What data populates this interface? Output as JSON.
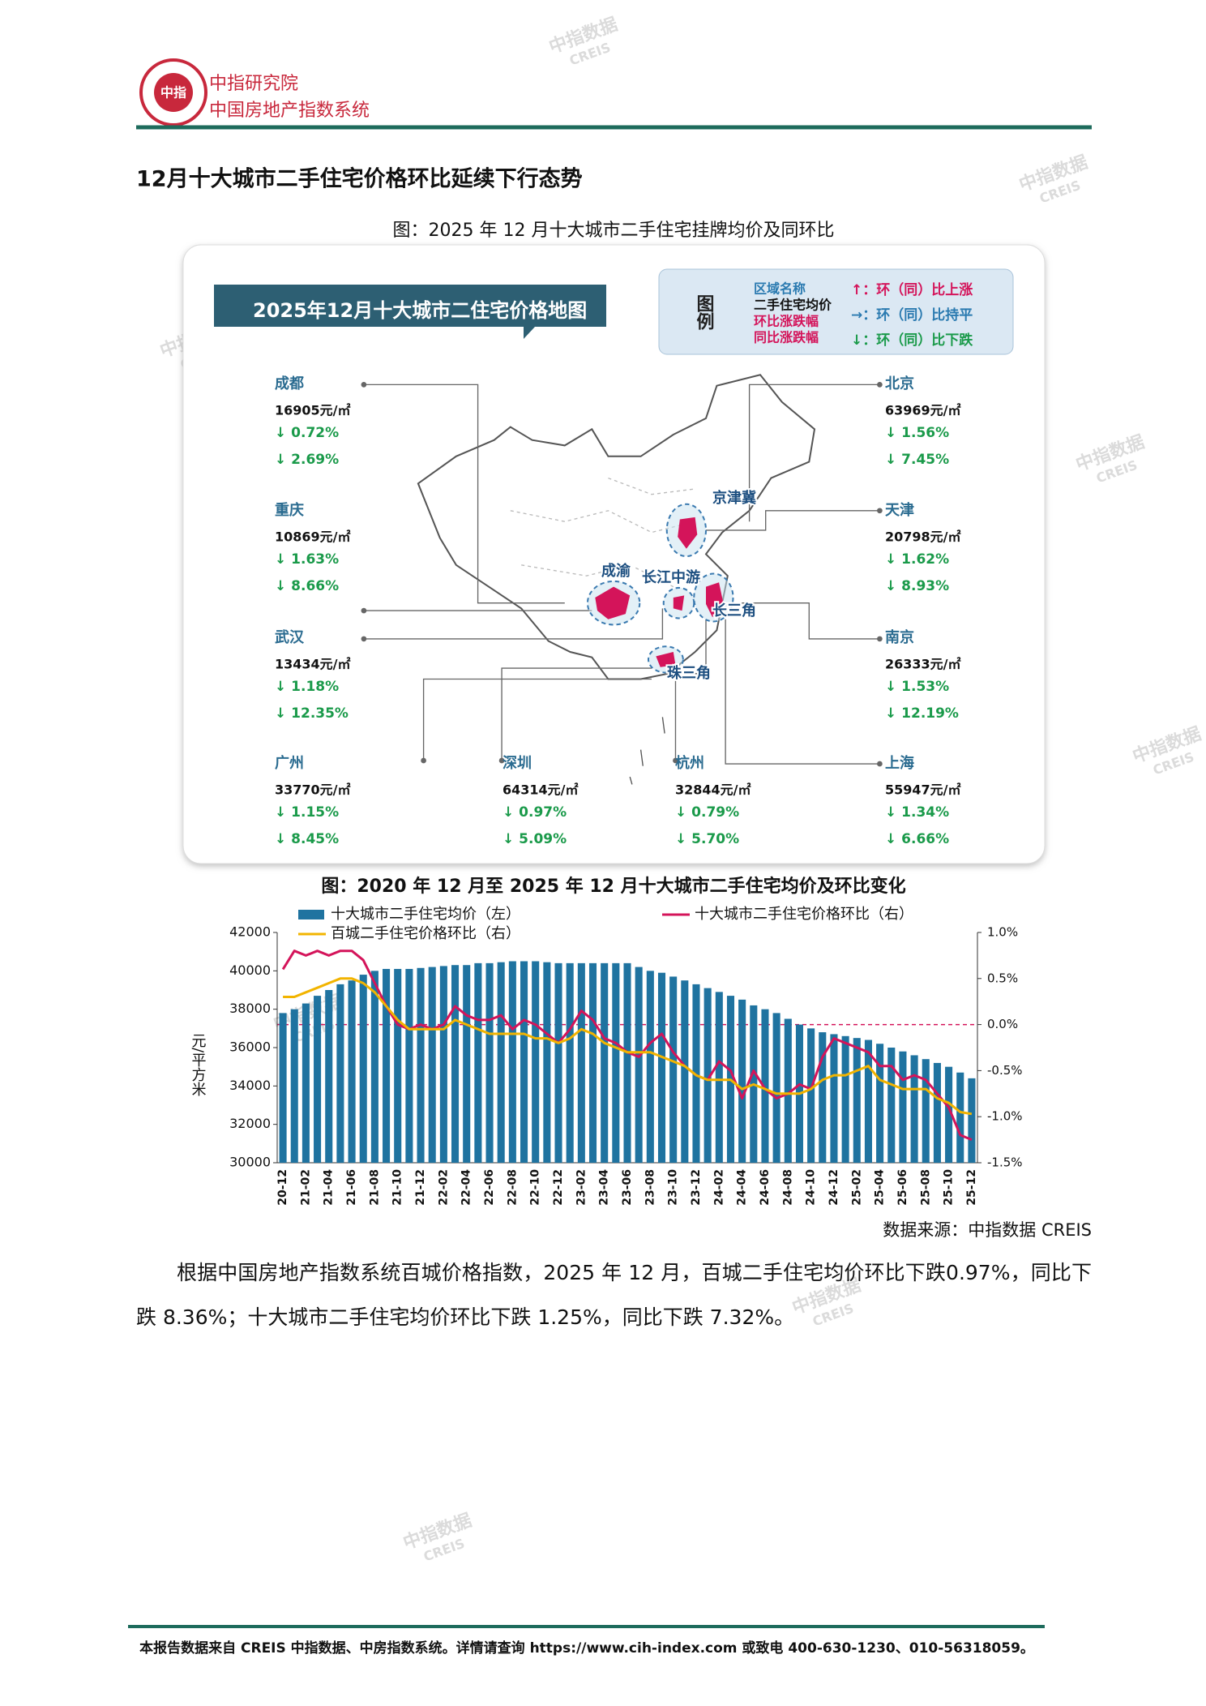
{
  "header": {
    "logo_text": "中指",
    "org": "中指研究院",
    "system": "中国房地产指数系统"
  },
  "section_title": "12月十大城市二手住宅价格环比延续下行态势",
  "figure1": {
    "caption": "图：2025 年 12 月十大城市二手住宅挂牌均价及同环比",
    "map_title": "2025年12月十大城市二住宅价格地图",
    "legend": {
      "title": "图例",
      "items": [
        "区域名称",
        "二手住宅均价",
        "环比涨跌幅",
        "同比涨跌幅"
      ],
      "arrows": [
        "↑：环（同）比上涨",
        "→：环（同）比持平",
        "↓：环（同）比下跌"
      ]
    },
    "regions": [
      "京津冀",
      "成渝",
      "长江中游",
      "长三角",
      "珠三角"
    ],
    "cities": [
      {
        "name": "成都",
        "price": "16905元/㎡",
        "mom": "↓ 0.72%",
        "yoy": "↓ 2.69%"
      },
      {
        "name": "重庆",
        "price": "10869元/㎡",
        "mom": "↓ 1.63%",
        "yoy": "↓ 8.66%"
      },
      {
        "name": "武汉",
        "price": "13434元/㎡",
        "mom": "↓ 1.18%",
        "yoy": "↓ 12.35%"
      },
      {
        "name": "广州",
        "price": "33770元/㎡",
        "mom": "↓ 1.15%",
        "yoy": "↓ 8.45%"
      },
      {
        "name": "深圳",
        "price": "64314元/㎡",
        "mom": "↓ 0.97%",
        "yoy": "↓ 5.09%"
      },
      {
        "name": "杭州",
        "price": "32844元/㎡",
        "mom": "↓ 0.79%",
        "yoy": "↓ 5.70%"
      },
      {
        "name": "北京",
        "price": "63969元/㎡",
        "mom": "↓ 1.56%",
        "yoy": "↓ 7.45%"
      },
      {
        "name": "天津",
        "price": "20798元/㎡",
        "mom": "↓ 1.62%",
        "yoy": "↓ 8.93%"
      },
      {
        "name": "南京",
        "price": "26333元/㎡",
        "mom": "↓ 1.53%",
        "yoy": "↓ 12.19%"
      },
      {
        "name": "上海",
        "price": "55947元/㎡",
        "mom": "↓ 1.34%",
        "yoy": "↓ 6.66%"
      }
    ]
  },
  "chart_data": {
    "type": "bar-line",
    "title": "图：2020 年 12 月至 2025 年 12 月十大城市二手住宅均价及环比变化",
    "y_label": "元/平方米",
    "categories": [
      "20-12",
      null,
      "21-02",
      null,
      "21-04",
      null,
      "21-06",
      null,
      "21-08",
      null,
      "21-10",
      null,
      "21-12",
      null,
      "22-02",
      null,
      "22-04",
      null,
      "22-06",
      null,
      "22-08",
      null,
      "22-10",
      null,
      "22-12",
      null,
      "23-02",
      null,
      "23-04",
      null,
      "23-06",
      null,
      "23-08",
      null,
      "23-10",
      null,
      "23-12",
      null,
      "24-02",
      null,
      "24-04",
      null,
      "24-06",
      null,
      "24-08",
      null,
      "24-10",
      null,
      "24-12",
      null,
      "25-02",
      null,
      "25-04",
      null,
      "25-06",
      null,
      "25-08",
      null,
      "25-10",
      null,
      "25-12"
    ],
    "series": [
      {
        "name": "十大城市二手住宅均价（左）",
        "type": "bar",
        "color": "#1f73a0",
        "values": [
          37800,
          38000,
          38300,
          38700,
          39000,
          39300,
          39500,
          39800,
          40000,
          40100,
          40100,
          40100,
          40150,
          40200,
          40250,
          40300,
          40300,
          40400,
          40400,
          40450,
          40500,
          40500,
          40500,
          40450,
          40400,
          40400,
          40400,
          40400,
          40400,
          40400,
          40400,
          40200,
          40000,
          39900,
          39700,
          39500,
          39300,
          39100,
          38900,
          38700,
          38500,
          38200,
          38000,
          37800,
          37500,
          37200,
          37000,
          36800,
          36700,
          36600,
          36500,
          36400,
          36200,
          36000,
          35800,
          35600,
          35400,
          35200,
          35000,
          34700,
          34400
        ]
      },
      {
        "name": "十大城市二手住宅价格环比（右）",
        "type": "line",
        "axis": "y2",
        "color": "#d4145a",
        "values": [
          0.6,
          0.8,
          0.75,
          0.8,
          0.75,
          0.8,
          0.8,
          0.7,
          0.45,
          0.2,
          0.0,
          -0.05,
          0.0,
          -0.05,
          0.0,
          0.2,
          0.1,
          0.05,
          0.05,
          0.1,
          -0.05,
          0.05,
          0.0,
          -0.1,
          -0.2,
          -0.05,
          0.15,
          0.05,
          -0.15,
          -0.2,
          -0.3,
          -0.35,
          -0.2,
          -0.1,
          -0.3,
          -0.45,
          -0.55,
          -0.6,
          -0.4,
          -0.5,
          -0.8,
          -0.5,
          -0.7,
          -0.8,
          -0.75,
          -0.65,
          -0.7,
          -0.35,
          -0.15,
          -0.2,
          -0.25,
          -0.3,
          -0.45,
          -0.45,
          -0.6,
          -0.55,
          -0.6,
          -0.75,
          -0.9,
          -1.2,
          -1.25
        ]
      },
      {
        "name": "百城二手住宅价格环比（右）",
        "type": "line",
        "axis": "y2",
        "color": "#f2b400",
        "values": [
          0.3,
          0.3,
          0.35,
          0.4,
          0.45,
          0.5,
          0.5,
          0.45,
          0.35,
          0.2,
          0.05,
          -0.05,
          -0.05,
          -0.05,
          -0.05,
          0.05,
          0.0,
          -0.05,
          -0.1,
          -0.1,
          -0.1,
          -0.1,
          -0.15,
          -0.15,
          -0.2,
          -0.15,
          -0.05,
          -0.1,
          -0.2,
          -0.25,
          -0.3,
          -0.3,
          -0.3,
          -0.35,
          -0.4,
          -0.45,
          -0.55,
          -0.6,
          -0.6,
          -0.6,
          -0.7,
          -0.65,
          -0.7,
          -0.75,
          -0.75,
          -0.75,
          -0.7,
          -0.6,
          -0.55,
          -0.55,
          -0.5,
          -0.45,
          -0.6,
          -0.65,
          -0.7,
          -0.7,
          -0.7,
          -0.8,
          -0.85,
          -0.95,
          -0.97
        ]
      }
    ],
    "ylim": [
      30000,
      42000
    ],
    "yticks": [
      30000,
      32000,
      34000,
      36000,
      38000,
      40000,
      42000
    ],
    "y2lim": [
      -1.5,
      1.0
    ],
    "y2ticks": [
      {
        "value": 1.0,
        "label": "1.0%"
      },
      {
        "value": 0.5,
        "label": "0.5%"
      },
      {
        "value": 0,
        "label": "0.0%"
      },
      {
        "value": -0.5,
        "label": "-0.5%"
      },
      {
        "value": -1.0,
        "label": "-1.0%"
      },
      {
        "value": -1.5,
        "label": "-1.5%"
      }
    ],
    "zero_line": true,
    "source": "数据来源：中指数据 CREIS"
  },
  "paragraph": "根据中国房地产指数系统百城价格指数，2025 年 12 月，百城二手住宅均价环比下跌0.97%，同比下跌 8.36%；十大城市二手住宅均价环比下跌 1.25%，同比下跌 7.32%。",
  "footer": "本报告数据来自 CREIS 中指数据、中房指数系统。详情请查询 https://www.cih-index.com 或致电 400-630-1230、010-56318059。",
  "watermark": [
    "中指数据",
    "CREIS"
  ]
}
